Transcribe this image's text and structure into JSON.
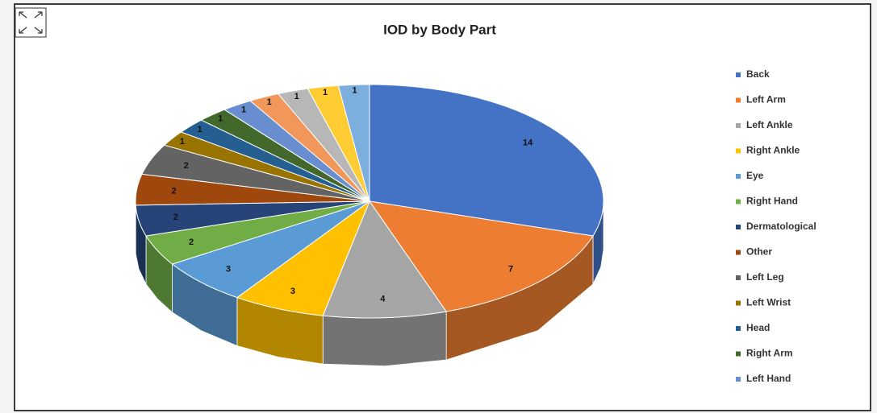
{
  "chart_data": {
    "type": "pie",
    "title": "IOD by Body Part",
    "categories": [
      "Back",
      "Left Arm",
      "Left Ankle",
      "Right Ankle",
      "Eye",
      "Right Hand",
      "Dermatological",
      "Other",
      "Left Leg",
      "Left Wrist",
      "Head",
      "Right Arm",
      "Left Hand",
      null,
      null,
      null,
      null
    ],
    "values": [
      14,
      7,
      4,
      3,
      3,
      2,
      2,
      2,
      2,
      1,
      1,
      1,
      1,
      1,
      1,
      1,
      1
    ],
    "colors": [
      "#4472c4",
      "#ed7d31",
      "#a5a5a5",
      "#ffc000",
      "#5b9bd5",
      "#70ad47",
      "#264478",
      "#9e480e",
      "#636363",
      "#997300",
      "#255e91",
      "#43682b",
      "#698ed0",
      "#f1975a",
      "#b7b7b7",
      "#ffcd33",
      "#7cafdd"
    ],
    "legend": "right"
  }
}
